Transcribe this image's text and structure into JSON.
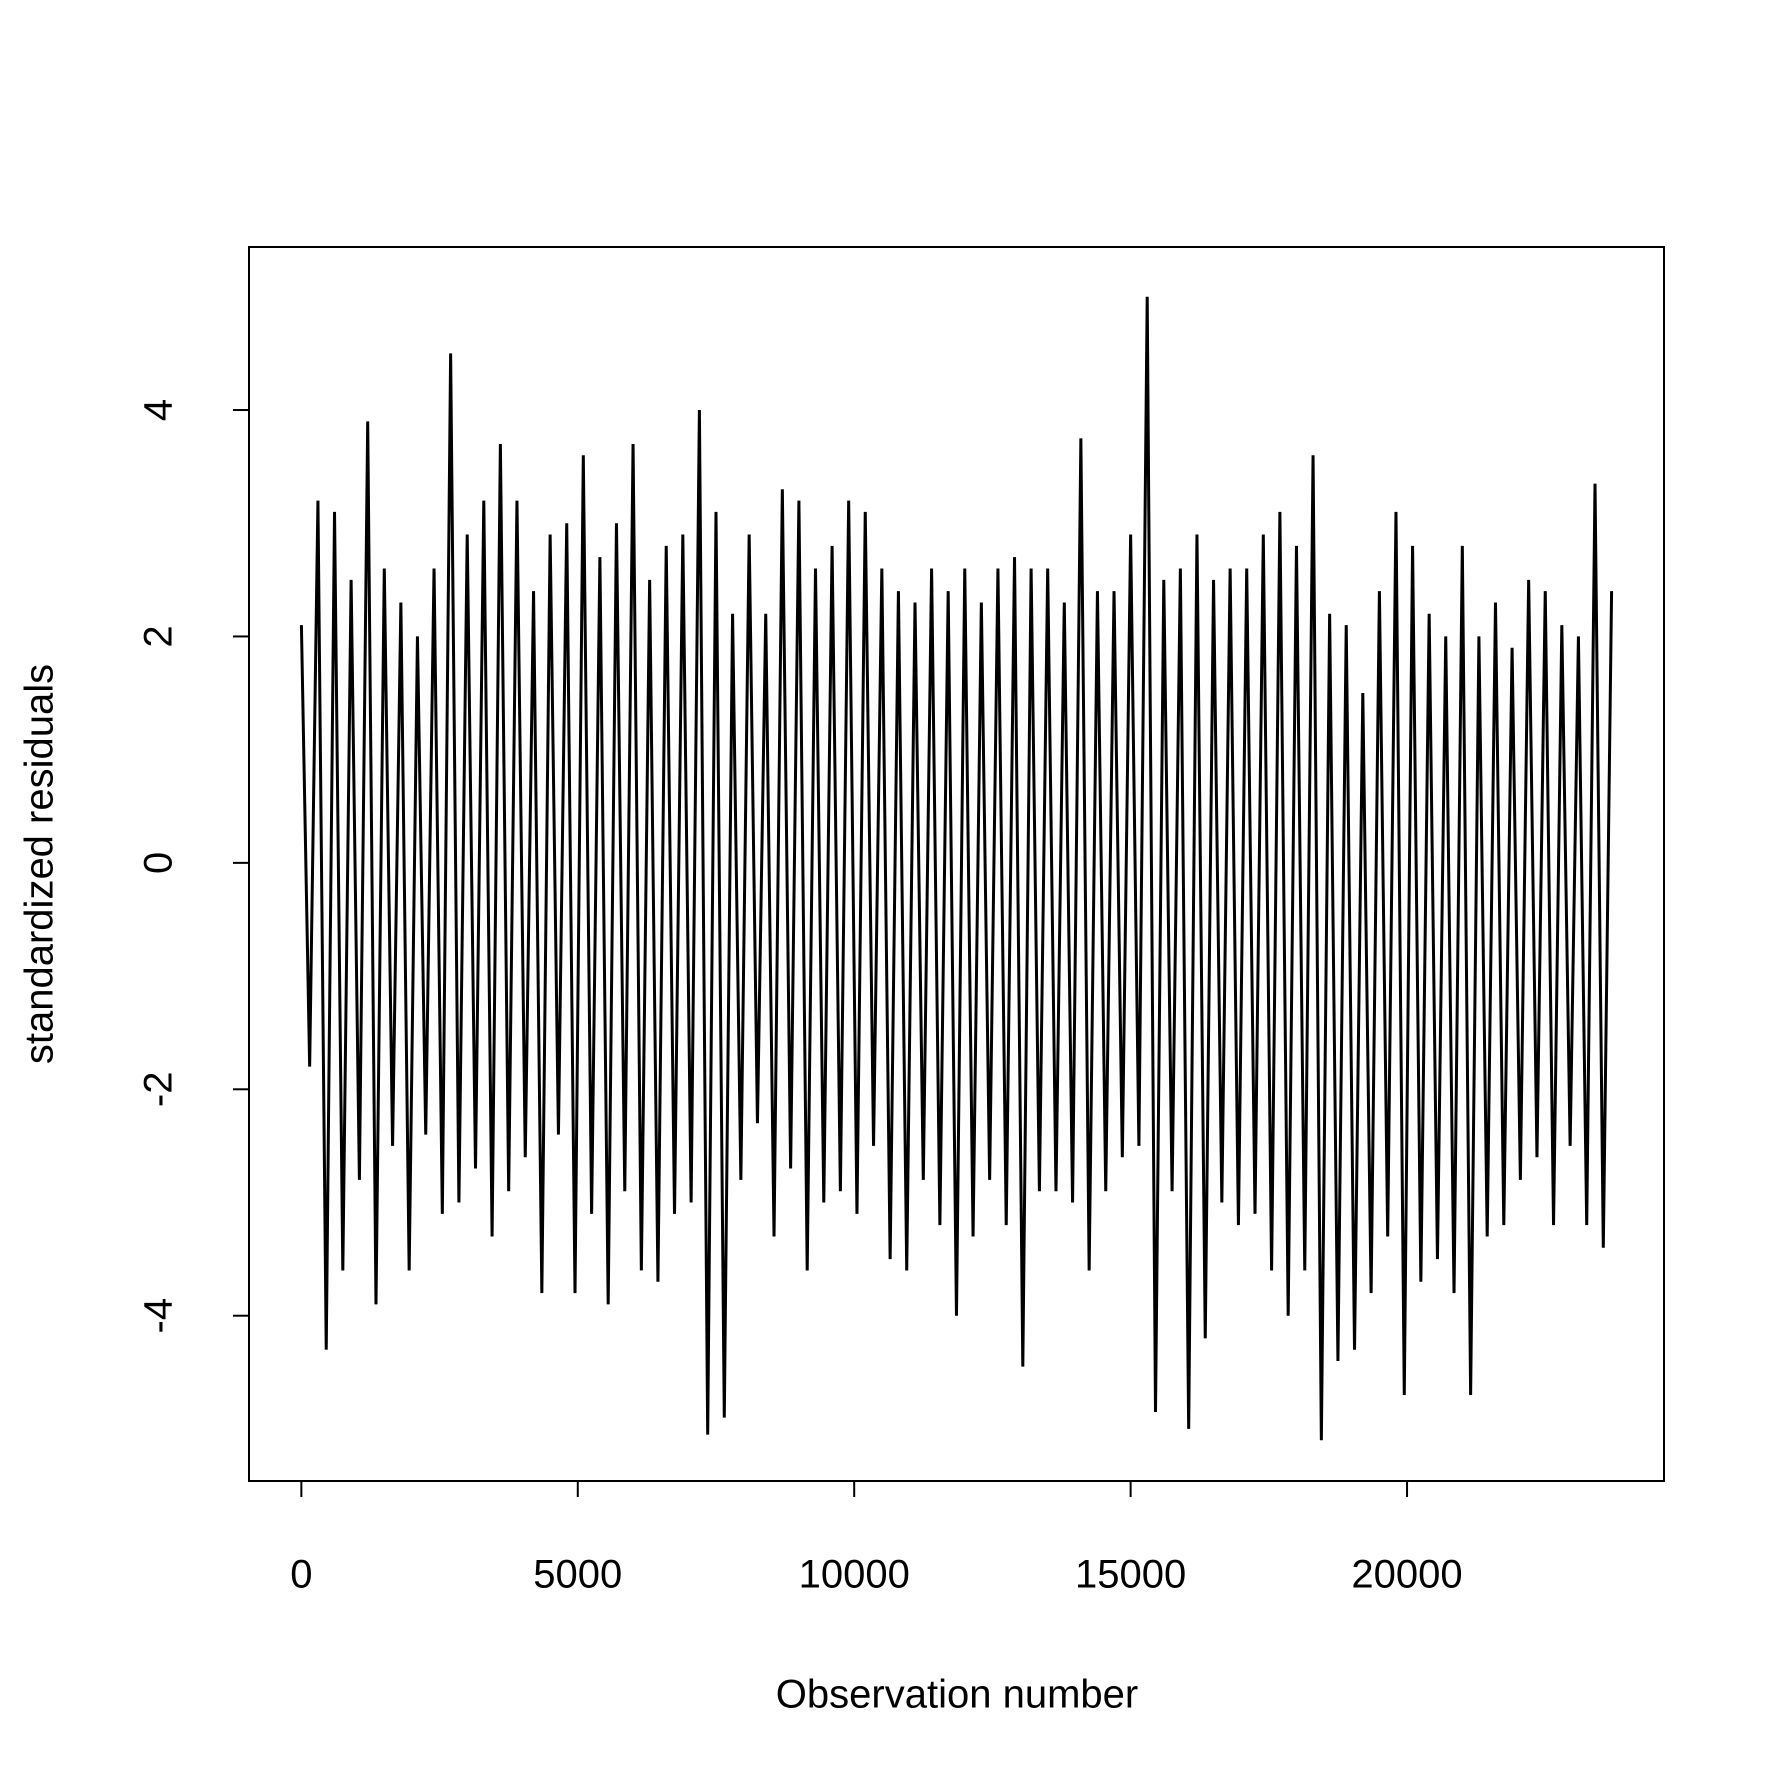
{
  "chart_data": {
    "type": "line",
    "xlabel": "Observation number",
    "ylabel": "standardized residuals",
    "color": "#000000",
    "xlim": [
      -947,
      24648
    ],
    "ylim": [
      -5.46,
      5.44
    ],
    "xticks": [
      0,
      5000,
      10000,
      15000,
      20000
    ],
    "yticks": [
      -4,
      -2,
      0,
      2,
      4
    ],
    "x": [
      1,
      150,
      300,
      450,
      600,
      750,
      900,
      1050,
      1200,
      1350,
      1500,
      1650,
      1800,
      1950,
      2100,
      2250,
      2400,
      2550,
      2700,
      2850,
      3000,
      3150,
      3300,
      3450,
      3600,
      3750,
      3900,
      4050,
      4200,
      4350,
      4500,
      4650,
      4800,
      4950,
      5100,
      5250,
      5400,
      5550,
      5700,
      5850,
      6000,
      6150,
      6300,
      6450,
      6600,
      6750,
      6900,
      7050,
      7200,
      7350,
      7500,
      7650,
      7800,
      7950,
      8100,
      8250,
      8400,
      8550,
      8700,
      8850,
      9000,
      9150,
      9300,
      9450,
      9600,
      9750,
      9900,
      10050,
      10200,
      10350,
      10500,
      10650,
      10800,
      10950,
      11100,
      11250,
      11400,
      11550,
      11700,
      11850,
      12000,
      12150,
      12300,
      12450,
      12600,
      12750,
      12900,
      13050,
      13200,
      13350,
      13500,
      13650,
      13800,
      13950,
      14100,
      14250,
      14400,
      14550,
      14700,
      14850,
      15000,
      15150,
      15300,
      15450,
      15600,
      15750,
      15900,
      16050,
      16200,
      16350,
      16500,
      16650,
      16800,
      16950,
      17100,
      17250,
      17400,
      17550,
      17700,
      17850,
      18000,
      18150,
      18300,
      18450,
      18600,
      18750,
      18900,
      19050,
      19200,
      19350,
      19500,
      19650,
      19800,
      19950,
      20100,
      20250,
      20400,
      20550,
      20700,
      20850,
      21000,
      21150,
      21300,
      21450,
      21600,
      21750,
      21900,
      22050,
      22200,
      22350,
      22500,
      22650,
      22800,
      22950,
      23100,
      23250,
      23400,
      23550,
      23700
    ],
    "values": [
      2.1,
      -1.8,
      3.2,
      -4.3,
      3.1,
      -3.6,
      2.5,
      -2.8,
      3.9,
      -3.9,
      2.6,
      -2.5,
      2.3,
      -3.6,
      2.0,
      -2.4,
      2.6,
      -3.1,
      4.5,
      -3.0,
      2.9,
      -2.7,
      3.2,
      -3.3,
      3.7,
      -2.9,
      3.2,
      -2.6,
      2.4,
      -3.8,
      2.9,
      -2.4,
      3.0,
      -3.8,
      3.6,
      -3.1,
      2.7,
      -3.9,
      3.0,
      -2.9,
      3.7,
      -3.6,
      2.5,
      -3.7,
      2.8,
      -3.1,
      2.9,
      -3.0,
      4.0,
      -5.05,
      3.1,
      -4.9,
      2.2,
      -2.8,
      2.9,
      -2.3,
      2.2,
      -3.3,
      3.3,
      -2.7,
      3.2,
      -3.6,
      2.6,
      -3.0,
      2.8,
      -2.9,
      3.2,
      -3.1,
      3.1,
      -2.5,
      2.6,
      -3.5,
      2.4,
      -3.6,
      2.3,
      -2.8,
      2.6,
      -3.2,
      2.4,
      -4.0,
      2.6,
      -3.3,
      2.3,
      -2.8,
      2.6,
      -3.2,
      2.7,
      -4.45,
      2.6,
      -2.9,
      2.6,
      -2.9,
      2.3,
      -3.0,
      3.75,
      -3.6,
      2.4,
      -2.9,
      2.4,
      -2.6,
      2.9,
      -2.5,
      5.0,
      -4.85,
      2.5,
      -2.9,
      2.6,
      -5.0,
      2.9,
      -4.2,
      2.5,
      -3.0,
      2.6,
      -3.2,
      2.6,
      -3.1,
      2.9,
      -3.6,
      3.1,
      -4.0,
      2.8,
      -3.6,
      3.6,
      -5.1,
      2.2,
      -4.4,
      2.1,
      -4.3,
      1.5,
      -3.8,
      2.4,
      -3.3,
      3.1,
      -4.7,
      2.8,
      -3.7,
      2.2,
      -3.5,
      2.0,
      -3.8,
      2.8,
      -4.7,
      2.0,
      -3.3,
      2.3,
      -3.2,
      1.9,
      -2.8,
      2.5,
      -2.6,
      2.4,
      -3.2,
      2.1,
      -2.5,
      2.0,
      -3.2,
      3.35,
      -3.4,
      2.4
    ]
  }
}
